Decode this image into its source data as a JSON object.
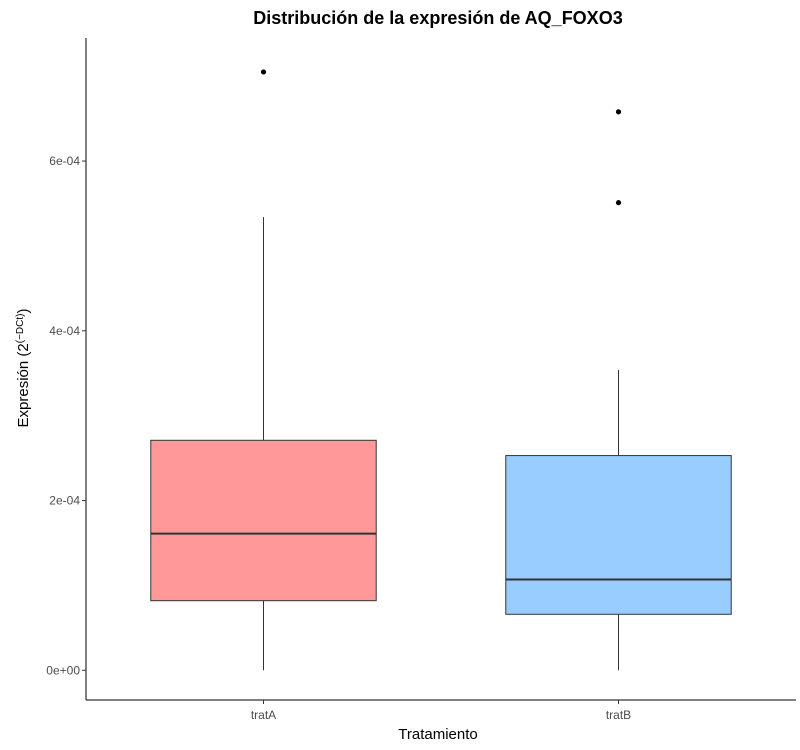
{
  "chart_data": {
    "type": "boxplot",
    "title": "Distribución de la expresión de AQ_FOXO3",
    "xlabel": "Tratamiento",
    "ylabel_main": "Expresión (2",
    "ylabel_superscript": "(−DCt)",
    "ylabel_close": ")",
    "ylim": [
      -3.5e-05,
      0.000745
    ],
    "yticks": [
      0,
      0.0002,
      0.0004,
      0.0006
    ],
    "ytick_labels": [
      "0e+00",
      "2e-04",
      "4e-04",
      "6e-04"
    ],
    "categories": [
      "tratA",
      "tratB"
    ],
    "series": [
      {
        "category": "tratA",
        "fill": "#ff9999",
        "whisker_low": 0.0,
        "q1": 8.2e-05,
        "median": 0.000161,
        "q3": 0.000271,
        "whisker_high": 0.000534,
        "outliers": [
          0.000705
        ]
      },
      {
        "category": "tratB",
        "fill": "#99ccff",
        "whisker_low": 0.0,
        "q1": 6.6e-05,
        "median": 0.000107,
        "q3": 0.000253,
        "whisker_high": 0.000354,
        "outliers": [
          0.000551,
          0.000658
        ]
      }
    ],
    "grid": false,
    "legend": "none"
  }
}
